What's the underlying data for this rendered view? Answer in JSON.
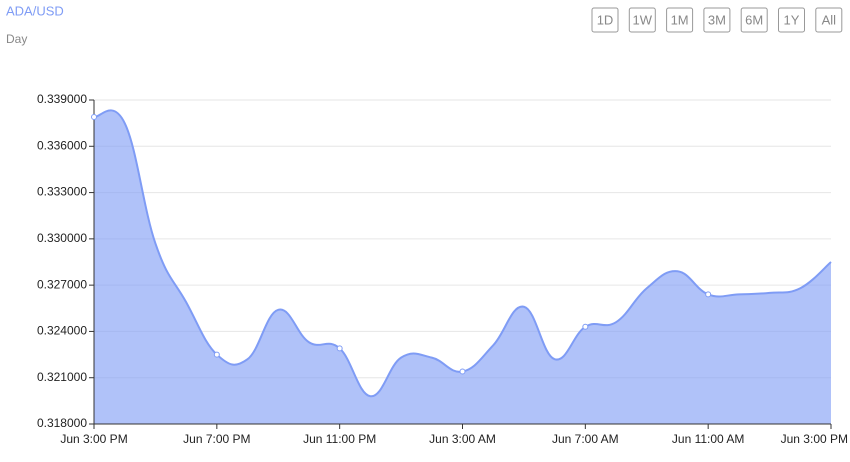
{
  "chart_data": {
    "type": "area",
    "title": "ADA/USD",
    "subtitle": "Day",
    "buttons": [
      "1D",
      "1W",
      "1M",
      "3M",
      "6M",
      "1Y",
      "All"
    ],
    "categories": [
      "Jun 3:00 PM",
      null,
      null,
      null,
      "Jun 7:00 PM",
      null,
      null,
      null,
      "Jun 11:00 PM",
      null,
      null,
      null,
      "Jun 3:00 AM",
      null,
      null,
      null,
      "Jun 7:00 AM",
      null,
      null,
      null,
      "Jun 11:00 AM",
      null,
      null,
      null,
      "Jun 3:00 PM"
    ],
    "values": [
      0.3379,
      0.3375,
      0.3297,
      0.3259,
      0.3225,
      0.3222,
      0.3254,
      0.3233,
      0.3229,
      0.3198,
      0.3223,
      0.3223,
      0.3214,
      0.3231,
      0.3256,
      0.3222,
      0.3243,
      0.3246,
      0.3268,
      0.3279,
      0.3264,
      0.3264,
      0.3265,
      0.3268,
      0.3285
    ],
    "color": "#7f9cf5",
    "ylim": [
      0.318,
      0.339
    ],
    "yticks": [
      {
        "value": 0.318,
        "label": "0.318000"
      },
      {
        "value": 0.321,
        "label": "0.321000"
      },
      {
        "value": 0.324,
        "label": "0.324000"
      },
      {
        "value": 0.327,
        "label": "0.327000"
      },
      {
        "value": 0.33,
        "label": "0.330000"
      },
      {
        "value": 0.333,
        "label": "0.333000"
      },
      {
        "value": 0.336,
        "label": "0.336000"
      },
      {
        "value": 0.339,
        "label": "0.339000"
      }
    ],
    "grid": true
  }
}
